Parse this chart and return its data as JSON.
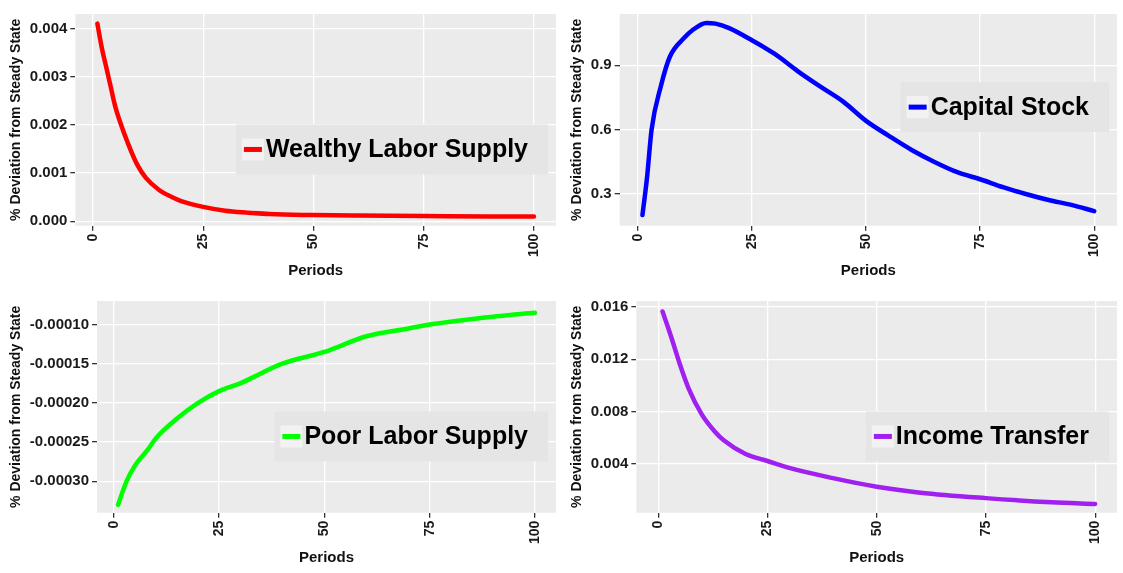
{
  "chart_data": [
    {
      "type": "line",
      "xlabel": "Periods",
      "ylabel": "% Deviation from Steady State",
      "legend": "right",
      "grid": true,
      "line_style": "solid",
      "marker": "none",
      "xlim": [
        -4,
        105
      ],
      "xticks": [
        0,
        25,
        50,
        75,
        100
      ],
      "ylim": [
        -9e-05,
        0.0043
      ],
      "yticks": [
        {
          "value": 0,
          "label": "0.000"
        },
        0.001,
        0.002,
        0.003,
        0.004
      ],
      "series": [
        {
          "name": "Wealthy Labor Supply",
          "color": "#ff0000",
          "x": [
            1,
            2,
            3,
            4,
            5,
            6,
            8,
            10,
            12,
            15,
            18,
            20,
            25,
            30,
            35,
            40,
            50,
            60,
            75,
            90,
            100
          ],
          "values": [
            0.0041,
            0.0036,
            0.0032,
            0.0028,
            0.0024,
            0.0021,
            0.0016,
            0.00118,
            0.0009,
            0.00065,
            0.0005,
            0.00042,
            0.0003,
            0.00022,
            0.00018,
            0.00015,
            0.00013,
            0.00012,
            0.00011,
            0.0001,
            0.0001
          ]
        }
      ]
    },
    {
      "type": "line",
      "xlabel": "Periods",
      "ylabel": "% Deviation from Steady State",
      "legend": "top right",
      "grid": true,
      "line_style": "solid",
      "marker": "none",
      "xlim": [
        -4,
        105
      ],
      "xticks": [
        0,
        25,
        50,
        75,
        100
      ],
      "ylim": [
        0.15,
        1.14
      ],
      "yticks": [
        0.3,
        0.6,
        0.9
      ],
      "series": [
        {
          "name": "Capital Stock",
          "color": "#0000ff",
          "x": [
            1,
            2,
            3,
            5,
            7,
            10,
            12,
            15,
            17,
            20,
            25,
            30,
            35,
            40,
            45,
            50,
            55,
            60,
            65,
            70,
            75,
            80,
            85,
            90,
            95,
            100
          ],
          "values": [
            0.2,
            0.375,
            0.6,
            0.8,
            0.94,
            1.025,
            1.065,
            1.098,
            1.095,
            1.074,
            1.017,
            0.953,
            0.873,
            0.8,
            0.73,
            0.64,
            0.57,
            0.504,
            0.448,
            0.4,
            0.367,
            0.33,
            0.298,
            0.27,
            0.247,
            0.218
          ]
        }
      ]
    },
    {
      "type": "line",
      "xlabel": "Periods",
      "ylabel": "% Deviation from Steady State",
      "legend": "right",
      "grid": true,
      "line_style": "solid",
      "marker": "none",
      "xlim": [
        -4,
        105
      ],
      "xticks": [
        0,
        25,
        50,
        75,
        100
      ],
      "ylim": [
        -0.00034,
        -7e-05
      ],
      "yticks": [
        {
          "value": -0.0003,
          "label": "-0.00030"
        },
        {
          "value": -0.00025,
          "label": "-0.00025"
        },
        {
          "value": -0.0002,
          "label": "-0.00020"
        },
        {
          "value": -0.00015,
          "label": "-0.00015"
        },
        {
          "value": -0.0001,
          "label": "-0.00010"
        }
      ],
      "series": [
        {
          "name": "Poor Labor Supply",
          "color": "#00ff00",
          "x": [
            1,
            3,
            5,
            8,
            10,
            15,
            20,
            25,
            30,
            40,
            50,
            60,
            70,
            75,
            90,
            100
          ],
          "values": [
            -0.00033,
            -0.0003,
            -0.00028,
            -0.00026,
            -0.000245,
            -0.00022,
            -0.0002,
            -0.000185,
            -0.000175,
            -0.00015,
            -0.000135,
            -0.000115,
            -0.000105,
            -0.0001,
            -9e-05,
            -8.5e-05
          ]
        }
      ]
    },
    {
      "type": "line",
      "xlabel": "Periods",
      "ylabel": "% Deviation from Steady State",
      "legend": "right",
      "grid": true,
      "line_style": "solid",
      "marker": "none",
      "xlim": [
        -5,
        105
      ],
      "xticks": [
        0,
        25,
        50,
        75,
        100
      ],
      "ylim": [
        0.00026,
        0.01645
      ],
      "yticks": [
        0.004,
        0.008,
        0.012,
        0.016
      ],
      "series": [
        {
          "name": "Income Transfer",
          "color": "#a020f0",
          "x": [
            1,
            3,
            5,
            7,
            10,
            13,
            15,
            20,
            25,
            30,
            40,
            50,
            60,
            75,
            90,
            100
          ],
          "values": [
            0.01565,
            0.01368,
            0.01158,
            0.00973,
            0.00776,
            0.00645,
            0.00579,
            0.00474,
            0.00421,
            0.00368,
            0.0029,
            0.00224,
            0.00179,
            0.00137,
            0.00105,
            0.00092
          ]
        }
      ]
    }
  ]
}
